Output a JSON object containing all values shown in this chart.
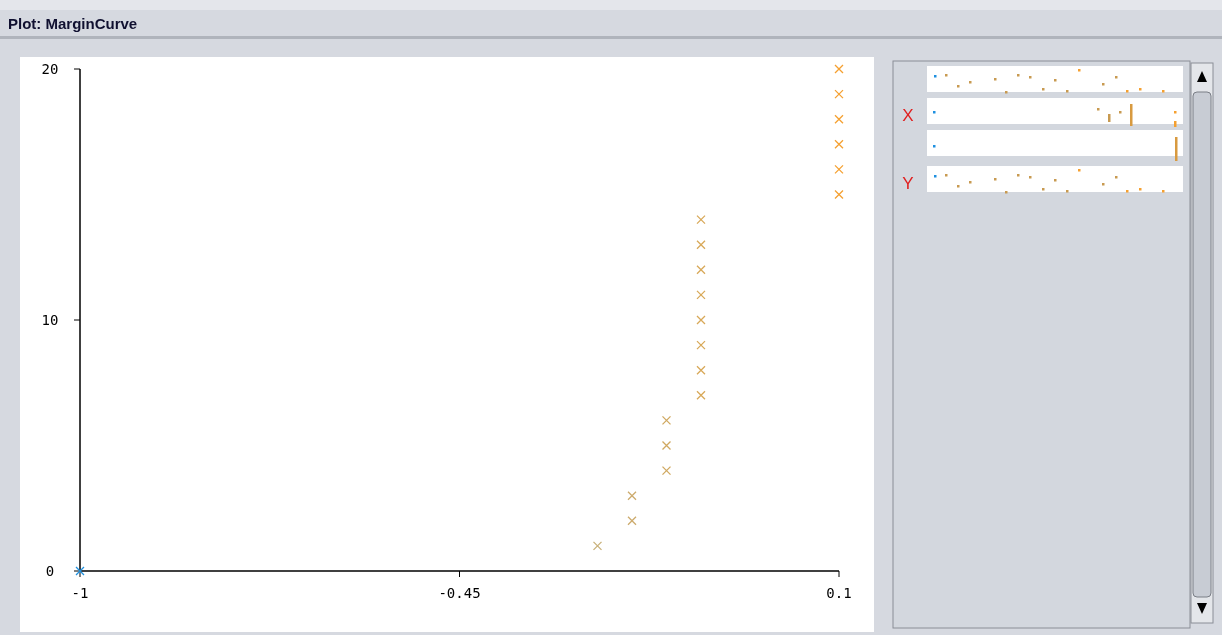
{
  "chart_data": {
    "type": "scatter",
    "title": "Plot: MarginCurve",
    "x": [
      -1,
      -0.25,
      -0.2,
      -0.2,
      -0.15,
      -0.15,
      -0.15,
      -0.1,
      -0.1,
      -0.1,
      -0.1,
      -0.1,
      -0.1,
      -0.1,
      -0.1,
      0.1,
      0.1,
      0.1,
      0.1,
      0.1,
      0.1
    ],
    "values": [
      0,
      1,
      2,
      3,
      4,
      5,
      6,
      7,
      8,
      9,
      10,
      11,
      12,
      13,
      14,
      15,
      16,
      17,
      18,
      19,
      20
    ],
    "colors": [
      "#1e90e0",
      "#c8b078",
      "#ccaa6c",
      "#ccaa6c",
      "#d0a860",
      "#d0a860",
      "#d0a860",
      "#d8a858",
      "#d8a858",
      "#d8a858",
      "#d8a858",
      "#d8a858",
      "#d8a858",
      "#d8a858",
      "#d8a858",
      "#f5a030",
      "#f5a030",
      "#f5a030",
      "#f5a030",
      "#f5a030",
      "#f5a030"
    ],
    "marker": "cross",
    "xlim": [
      -1,
      0.1
    ],
    "xticks": [
      -1,
      -0.45,
      0.1
    ],
    "ylim": [
      0,
      20
    ],
    "yticks": [
      0,
      10,
      20
    ],
    "grid": false,
    "annotations": [
      "X",
      "Y"
    ]
  }
}
